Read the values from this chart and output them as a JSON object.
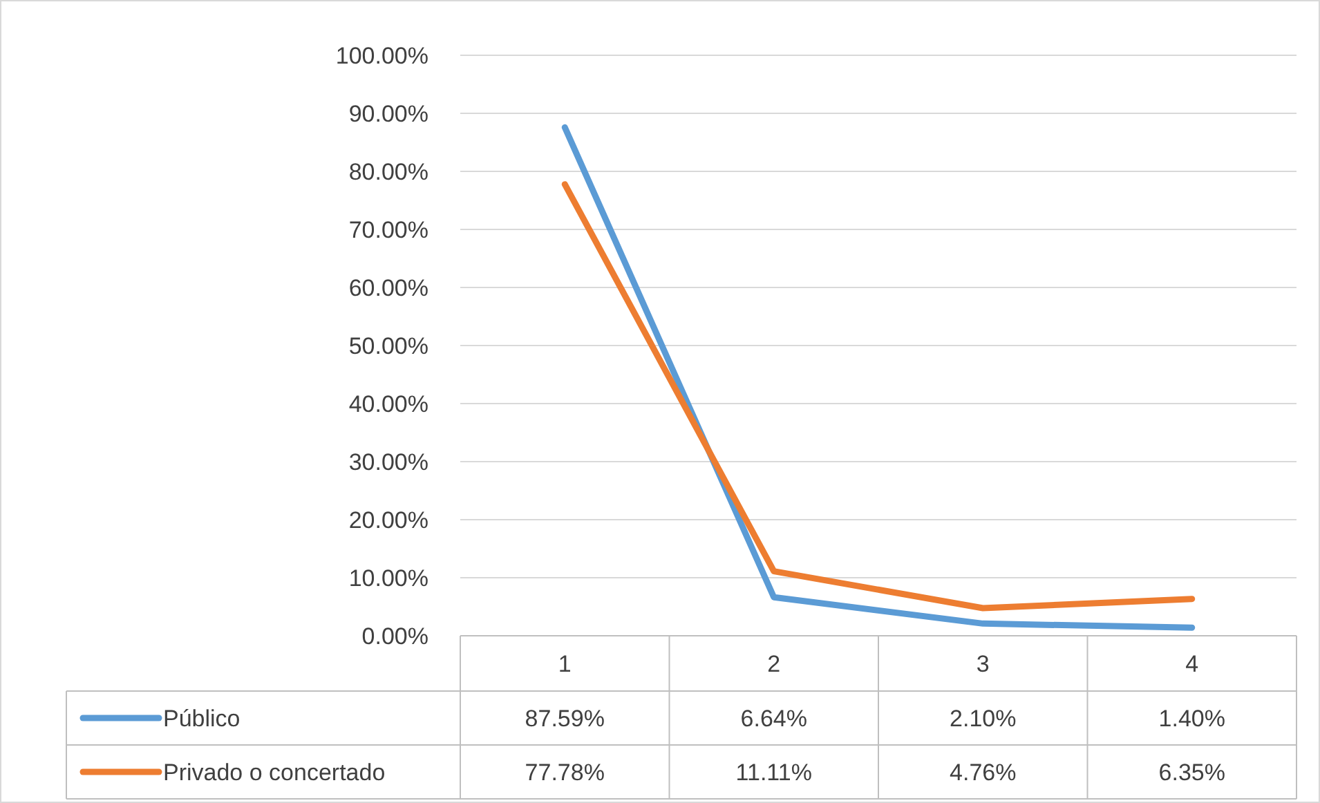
{
  "chart_data": {
    "type": "line",
    "categories": [
      "1",
      "2",
      "3",
      "4"
    ],
    "series": [
      {
        "name": "Público",
        "color": "#5b9bd5",
        "values": [
          87.59,
          6.64,
          2.1,
          1.4
        ],
        "value_labels": [
          "87.59%",
          "6.64%",
          "2.10%",
          "1.40%"
        ]
      },
      {
        "name": "Privado o concertado",
        "color": "#ed7d31",
        "values": [
          77.78,
          11.11,
          4.76,
          6.35
        ],
        "value_labels": [
          "77.78%",
          "11.11%",
          "4.76%",
          "6.35%"
        ]
      }
    ],
    "ylim": [
      0,
      100
    ],
    "yticks": [
      {
        "value": 0,
        "label": "0.00%"
      },
      {
        "value": 10,
        "label": "10.00%"
      },
      {
        "value": 20,
        "label": "20.00%"
      },
      {
        "value": 30,
        "label": "30.00%"
      },
      {
        "value": 40,
        "label": "40.00%"
      },
      {
        "value": 50,
        "label": "50.00%"
      },
      {
        "value": 60,
        "label": "60.00%"
      },
      {
        "value": 70,
        "label": "70.00%"
      },
      {
        "value": 80,
        "label": "80.00%"
      },
      {
        "value": 90,
        "label": "90.00%"
      },
      {
        "value": 100,
        "label": "100.00%"
      }
    ],
    "grid": "y",
    "legend": "bottom",
    "marker": "none",
    "line_style": "solid"
  }
}
